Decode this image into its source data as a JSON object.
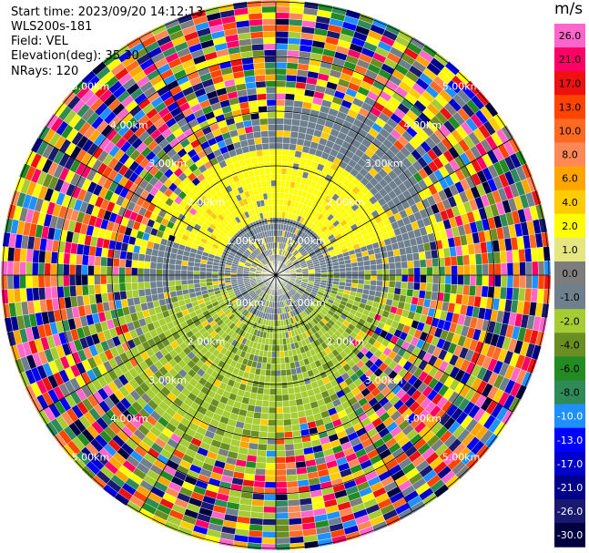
{
  "header": {
    "start_time": "Start time: 2023/09/20 14:12:13",
    "instrument": "WLS200s-181",
    "field": "Field: VEL",
    "elevation": "Elevation(deg): 35.30",
    "nrays": "NRays: 120"
  },
  "colorbar": {
    "unit": "m/s",
    "levels": [
      {
        "label": "26.0",
        "color": "#ff66cc"
      },
      {
        "label": "21.0",
        "color": "#ff0066"
      },
      {
        "label": "17.0",
        "color": "#ee1111"
      },
      {
        "label": "13.0",
        "color": "#ff4400"
      },
      {
        "label": "10.0",
        "color": "#ff6a22"
      },
      {
        "label": "8.0",
        "color": "#ff8855"
      },
      {
        "label": "6.0",
        "color": "#ffa500"
      },
      {
        "label": "4.0",
        "color": "#ffcc00"
      },
      {
        "label": "2.0",
        "color": "#ffff00"
      },
      {
        "label": "1.0",
        "color": "#e6e680"
      },
      {
        "label": "0.0",
        "color": "#7d7d7d"
      },
      {
        "label": "-1.0",
        "color": "#6e7f8e"
      },
      {
        "label": "-2.0",
        "color": "#a6cc33"
      },
      {
        "label": "-4.0",
        "color": "#6b8e23"
      },
      {
        "label": "-6.0",
        "color": "#228b22"
      },
      {
        "label": "-8.0",
        "color": "#2e8b57"
      },
      {
        "label": "-10.0",
        "color": "#1e90ff"
      },
      {
        "label": "-13.0",
        "color": "#0000ff"
      },
      {
        "label": "-17.0",
        "color": "#0000cd"
      },
      {
        "label": "-21.0",
        "color": "#00008b"
      },
      {
        "label": "-26.0",
        "color": "#191970"
      },
      {
        "label": "-30.0",
        "color": "#000040"
      }
    ]
  },
  "chart_data": {
    "type": "heatmap",
    "projection": "polar",
    "field": "VEL",
    "units": "m/s",
    "nrays": 120,
    "value_range": [
      -30,
      26
    ],
    "range_ring_labels": [
      "1.00km",
      "2.00km",
      "3.00km",
      "4.00km",
      "5.00km"
    ],
    "grid": true
  }
}
